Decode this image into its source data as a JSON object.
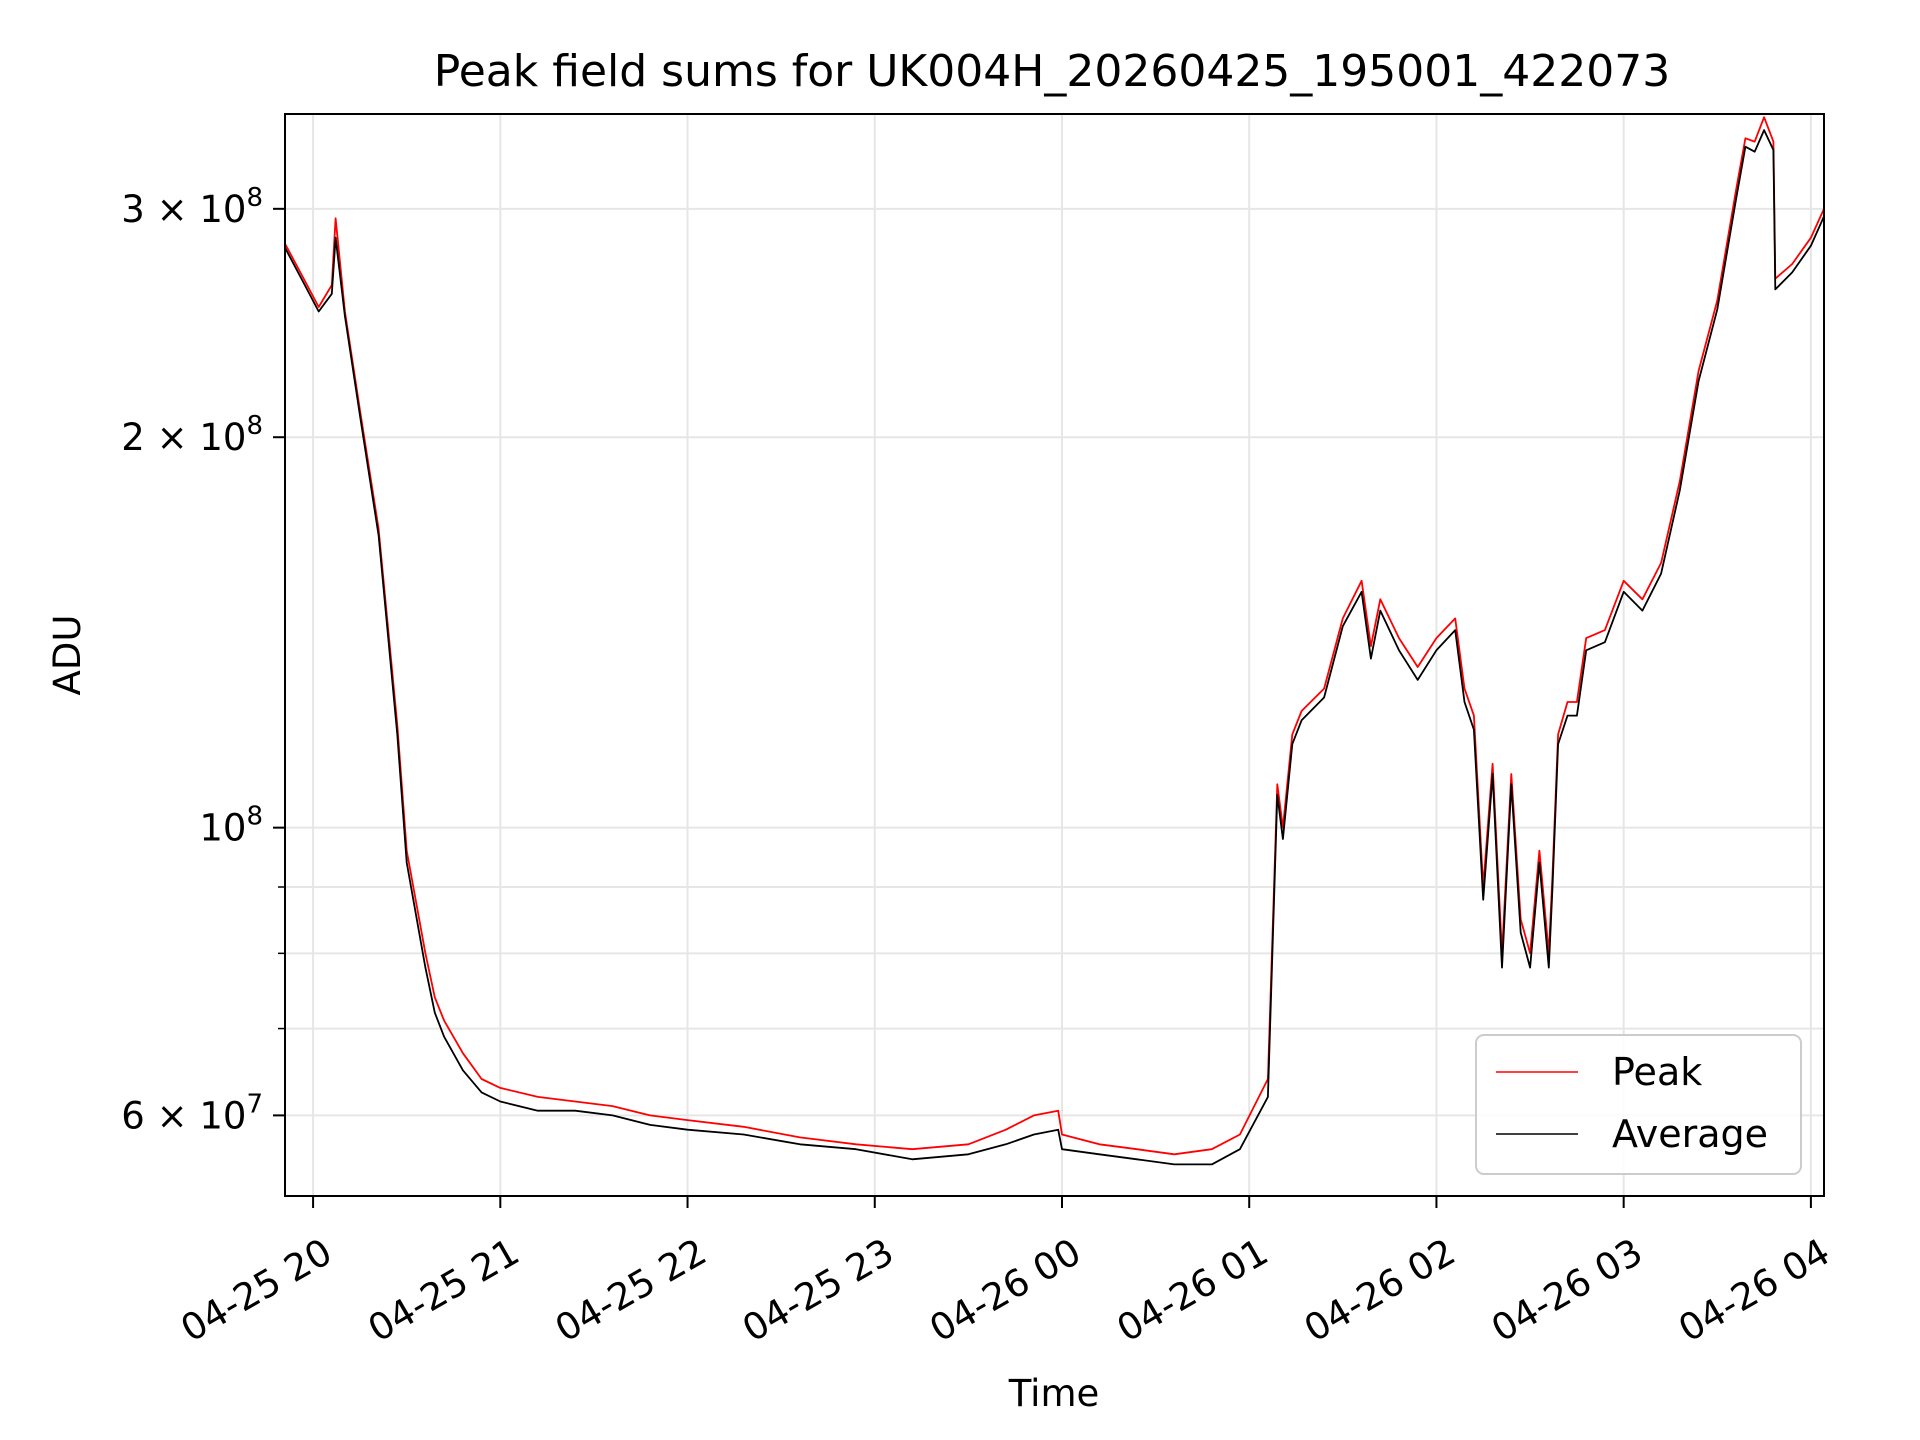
{
  "chart_data": {
    "type": "line",
    "title": "Peak field sums for UK004H_20260425_195001_422073",
    "xlabel": "Time",
    "ylabel": "ADU",
    "yscale": "log",
    "ylim": [
      52000000,
      355000000
    ],
    "xlim": [
      19.85,
      28.07
    ],
    "grid": true,
    "legend_position": "lower-right",
    "x_ticks": [
      {
        "value": 20,
        "label": "04-25 20"
      },
      {
        "value": 21,
        "label": "04-25 21"
      },
      {
        "value": 22,
        "label": "04-25 22"
      },
      {
        "value": 23,
        "label": "04-25 23"
      },
      {
        "value": 24,
        "label": "04-26 00"
      },
      {
        "value": 25,
        "label": "04-26 01"
      },
      {
        "value": 26,
        "label": "04-26 02"
      },
      {
        "value": 27,
        "label": "04-26 03"
      },
      {
        "value": 28,
        "label": "04-26 04"
      }
    ],
    "y_major_ticks": [
      {
        "value": 60000000,
        "base": "6 × 10",
        "exp": "7"
      },
      {
        "value": 100000000,
        "base": "10",
        "exp": "8"
      },
      {
        "value": 200000000,
        "base": "2 × 10",
        "exp": "8"
      },
      {
        "value": 300000000,
        "base": "3 × 10",
        "exp": "8"
      }
    ],
    "y_minor_ticks": [
      70000000,
      80000000,
      90000000
    ],
    "x_unit": "hours since 2026-04-25 00:00",
    "series": [
      {
        "name": "Peak",
        "color": "#ff0000",
        "x": [
          19.85,
          19.95,
          20.03,
          20.1,
          20.12,
          20.17,
          20.25,
          20.35,
          20.45,
          20.5,
          20.6,
          20.65,
          20.7,
          20.8,
          20.9,
          21.0,
          21.2,
          21.4,
          21.6,
          21.8,
          22.0,
          22.3,
          22.6,
          22.9,
          23.2,
          23.5,
          23.7,
          23.85,
          23.98,
          24.0,
          24.2,
          24.4,
          24.6,
          24.8,
          24.95,
          25.1,
          25.15,
          25.18,
          25.23,
          25.28,
          25.4,
          25.5,
          25.6,
          25.65,
          25.7,
          25.8,
          25.9,
          26.0,
          26.1,
          26.15,
          26.2,
          26.25,
          26.3,
          26.35,
          26.4,
          26.45,
          26.5,
          26.55,
          26.6,
          26.62,
          26.65,
          26.7,
          26.75,
          26.8,
          26.9,
          27.0,
          27.1,
          27.2,
          27.3,
          27.4,
          27.5,
          27.6,
          27.65,
          27.7,
          27.75,
          27.8,
          27.81,
          27.9,
          28.0,
          28.07
        ],
        "y": [
          282000000,
          265000000,
          252000000,
          262000000,
          295000000,
          250000000,
          210000000,
          170000000,
          120000000,
          96000000,
          80000000,
          74000000,
          71000000,
          67000000,
          64000000,
          63000000,
          62000000,
          61500000,
          61000000,
          60000000,
          59500000,
          58800000,
          57700000,
          57000000,
          56500000,
          57000000,
          58500000,
          60000000,
          60500000,
          58000000,
          57000000,
          56500000,
          56000000,
          56500000,
          58000000,
          64000000,
          108000000,
          100000000,
          118000000,
          123000000,
          128000000,
          145000000,
          155000000,
          138000000,
          150000000,
          140000000,
          133000000,
          140000000,
          145000000,
          128000000,
          122000000,
          90000000,
          112000000,
          80000000,
          110000000,
          85000000,
          80000000,
          96000000,
          80000000,
          92000000,
          118000000,
          125000000,
          125000000,
          140000000,
          142000000,
          155000000,
          150000000,
          160000000,
          185000000,
          225000000,
          255000000,
          310000000,
          340000000,
          338000000,
          353000000,
          338000000,
          265000000,
          272000000,
          285000000,
          300000000
        ]
      },
      {
        "name": "Average",
        "color": "#000000",
        "x": [
          19.85,
          19.95,
          20.03,
          20.1,
          20.12,
          20.17,
          20.25,
          20.35,
          20.45,
          20.5,
          20.6,
          20.65,
          20.7,
          20.8,
          20.9,
          21.0,
          21.2,
          21.4,
          21.6,
          21.8,
          22.0,
          22.3,
          22.6,
          22.9,
          23.2,
          23.5,
          23.7,
          23.85,
          23.98,
          24.0,
          24.2,
          24.4,
          24.6,
          24.8,
          24.95,
          25.1,
          25.15,
          25.18,
          25.23,
          25.28,
          25.4,
          25.5,
          25.6,
          25.65,
          25.7,
          25.8,
          25.9,
          26.0,
          26.1,
          26.15,
          26.2,
          26.25,
          26.3,
          26.35,
          26.4,
          26.45,
          26.5,
          26.55,
          26.6,
          26.62,
          26.65,
          26.7,
          26.75,
          26.8,
          26.9,
          27.0,
          27.1,
          27.2,
          27.3,
          27.4,
          27.5,
          27.6,
          27.65,
          27.7,
          27.75,
          27.8,
          27.81,
          27.9,
          28.0,
          28.07
        ],
        "y": [
          280000000,
          263000000,
          250000000,
          258000000,
          285000000,
          248000000,
          208000000,
          168000000,
          118000000,
          94000000,
          78000000,
          72000000,
          69000000,
          65000000,
          62500000,
          61500000,
          60500000,
          60500000,
          60000000,
          59000000,
          58500000,
          58000000,
          57000000,
          56500000,
          55500000,
          56000000,
          57000000,
          58000000,
          58500000,
          56500000,
          56000000,
          55500000,
          55000000,
          55000000,
          56500000,
          62000000,
          106000000,
          98000000,
          116000000,
          121000000,
          126000000,
          143000000,
          152000000,
          135000000,
          147000000,
          137000000,
          130000000,
          137000000,
          142000000,
          125000000,
          119000000,
          88000000,
          110000000,
          78000000,
          108000000,
          83000000,
          78000000,
          94000000,
          78000000,
          90000000,
          116000000,
          122000000,
          122000000,
          137000000,
          139000000,
          152000000,
          147000000,
          157000000,
          182000000,
          221000000,
          251000000,
          305000000,
          335000000,
          332000000,
          345000000,
          333000000,
          260000000,
          268000000,
          281000000,
          296000000
        ]
      }
    ]
  }
}
